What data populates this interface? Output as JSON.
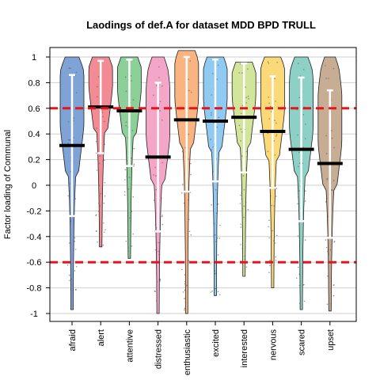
{
  "chart_data": {
    "type": "violin",
    "title": "Laodings of def.A for dataset MDD BPD TRULL",
    "xlabel": "",
    "ylabel": "Factor loading of Communal",
    "ylim": [
      -1.08,
      1.05
    ],
    "yticks": [
      1,
      0.8,
      0.6,
      0.4,
      0.2,
      0,
      -0.2,
      -0.4,
      -0.6,
      -0.8,
      -1
    ],
    "ytick_labels": [
      "1",
      "0.8",
      "0.6",
      "0.4",
      "0.2",
      "0",
      "-0.2",
      "-0.4",
      "-0.6",
      "-0.8",
      "-1"
    ],
    "threshold_lines": [
      0.6,
      -0.6
    ],
    "threshold_color": "#e8131b",
    "grid": "horizontal",
    "categories": [
      "afraid",
      "alert",
      "attentive",
      "distressed",
      "enthusiastic",
      "excited",
      "interested",
      "nervous",
      "scared",
      "upset"
    ],
    "colors": [
      "#7fa3d4",
      "#f28b93",
      "#8ccf99",
      "#f4a6c8",
      "#f9b482",
      "#8fcaf2",
      "#d3e59b",
      "#fbd978",
      "#8dd1c6",
      "#c7ad94"
    ],
    "series": [
      {
        "name": "afraid",
        "min": -0.97,
        "max": 1.0,
        "mean": 0.31,
        "sd_low": -0.24,
        "sd_high": 0.86
      },
      {
        "name": "alert",
        "min": -0.48,
        "max": 1.0,
        "mean": 0.61,
        "sd_low": 0.25,
        "sd_high": 0.97
      },
      {
        "name": "attentive",
        "min": -0.57,
        "max": 1.0,
        "mean": 0.58,
        "sd_low": 0.15,
        "sd_high": 0.98
      },
      {
        "name": "distressed",
        "min": -1.0,
        "max": 1.0,
        "mean": 0.22,
        "sd_low": -0.36,
        "sd_high": 0.8
      },
      {
        "name": "enthusiastic",
        "min": -1.0,
        "max": 1.05,
        "mean": 0.51,
        "sd_low": -0.05,
        "sd_high": 1.0
      },
      {
        "name": "excited",
        "min": -0.86,
        "max": 1.0,
        "mean": 0.5,
        "sd_low": 0.03,
        "sd_high": 0.98
      },
      {
        "name": "interested",
        "min": -0.71,
        "max": 0.96,
        "mean": 0.53,
        "sd_low": 0.1,
        "sd_high": 0.95
      },
      {
        "name": "nervous",
        "min": -0.8,
        "max": 1.0,
        "mean": 0.42,
        "sd_low": -0.02,
        "sd_high": 0.85
      },
      {
        "name": "scared",
        "min": -0.97,
        "max": 1.0,
        "mean": 0.28,
        "sd_low": -0.28,
        "sd_high": 0.84
      },
      {
        "name": "upset",
        "min": -0.98,
        "max": 1.0,
        "mean": 0.17,
        "sd_low": -0.41,
        "sd_high": 0.74
      }
    ]
  }
}
